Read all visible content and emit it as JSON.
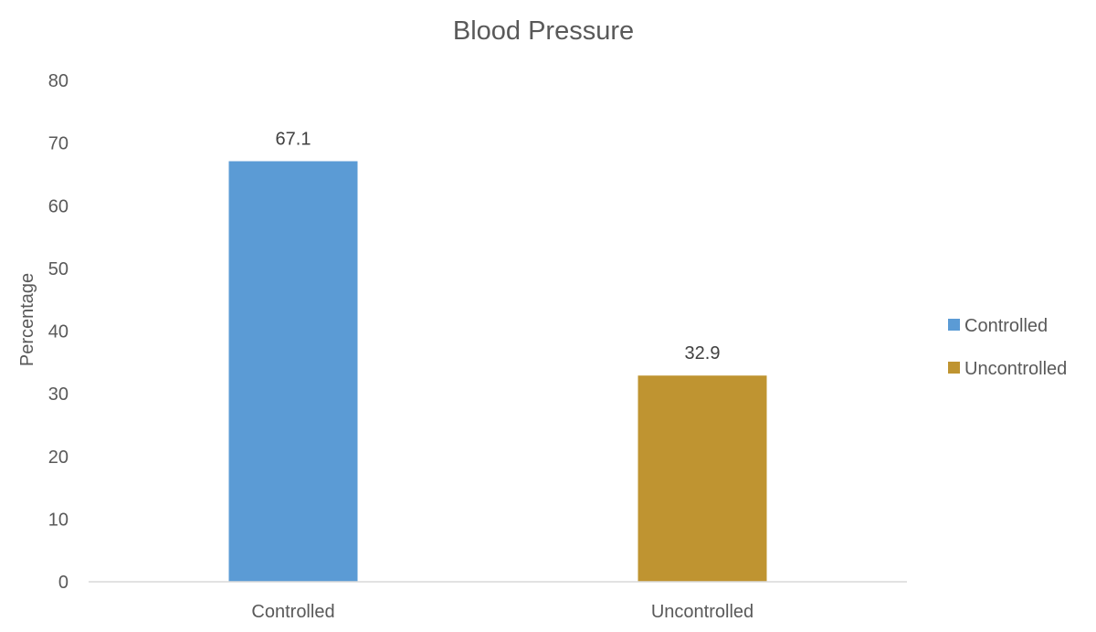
{
  "chart_data": {
    "type": "bar",
    "title": "Blood Pressure",
    "xlabel": "",
    "ylabel": "Percentage",
    "categories": [
      "Controlled",
      "Uncontrolled"
    ],
    "series": [
      {
        "name": "Controlled",
        "color": "#5b9bd5",
        "values": [
          67.1,
          null
        ]
      },
      {
        "name": "Uncontrolled",
        "color": "#bf9431",
        "values": [
          null,
          32.9
        ]
      }
    ],
    "data_labels": [
      "67.1",
      "32.9"
    ],
    "ylim": [
      0,
      80
    ],
    "yticks": [
      0,
      10,
      20,
      30,
      40,
      50,
      60,
      70,
      80
    ],
    "grid": false,
    "legend_position": "right"
  }
}
